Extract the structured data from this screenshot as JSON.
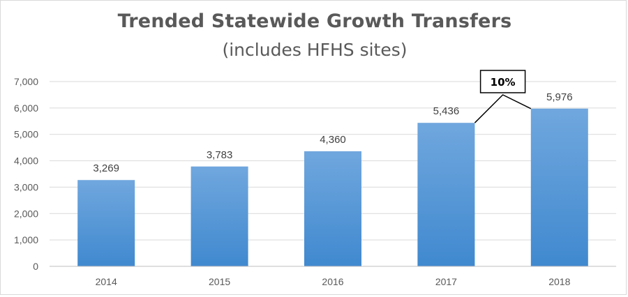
{
  "chart_data": {
    "type": "bar",
    "title": "Trended Statewide Growth Transfers",
    "subtitle": "(includes HFHS sites)",
    "categories": [
      "2014",
      "2015",
      "2016",
      "2017",
      "2018"
    ],
    "values": [
      3269,
      3783,
      4360,
      5436,
      5976
    ],
    "data_labels": [
      "3,269",
      "3,783",
      "4,360",
      "5,436",
      "5,976"
    ],
    "ylim": [
      0,
      7000
    ],
    "y_ticks": [
      0,
      1000,
      2000,
      3000,
      4000,
      5000,
      6000,
      7000
    ],
    "y_tick_labels": [
      "0",
      "1,000",
      "2,000",
      "3,000",
      "4,000",
      "5,000",
      "6,000",
      "7,000"
    ],
    "grid": true,
    "legend": "none",
    "bar_color_top": "#70a7de",
    "bar_color_bottom": "#4089cf",
    "annotation": {
      "text": "10%",
      "from_category": "2017",
      "to_category": "2018"
    }
  }
}
